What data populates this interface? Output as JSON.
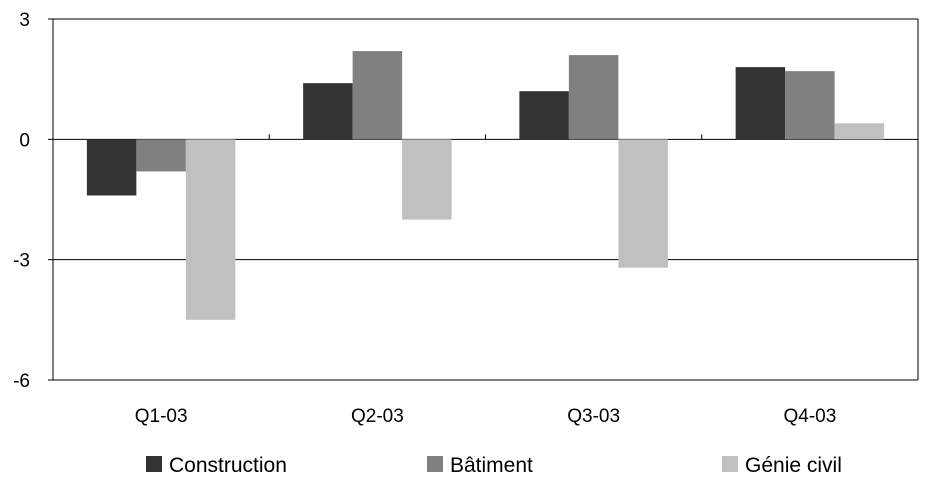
{
  "chart_data": {
    "type": "bar",
    "title": "",
    "xlabel": "",
    "ylabel": "",
    "categories": [
      "Q1-03",
      "Q2-03",
      "Q3-03",
      "Q4-03"
    ],
    "series": [
      {
        "name": "Construction",
        "color": "#333333",
        "values": [
          -1.4,
          1.4,
          1.2,
          1.8
        ]
      },
      {
        "name": "Bâtiment",
        "color": "#808080",
        "values": [
          -0.8,
          2.2,
          2.1,
          1.7
        ]
      },
      {
        "name": "Génie civil",
        "color": "#c0c0c0",
        "values": [
          -4.5,
          -2.0,
          -3.2,
          0.4
        ]
      }
    ],
    "ylim": [
      -6,
      3
    ],
    "yticks": [
      3,
      0,
      -3,
      -6
    ],
    "grid": true,
    "legend_position": "bottom"
  }
}
